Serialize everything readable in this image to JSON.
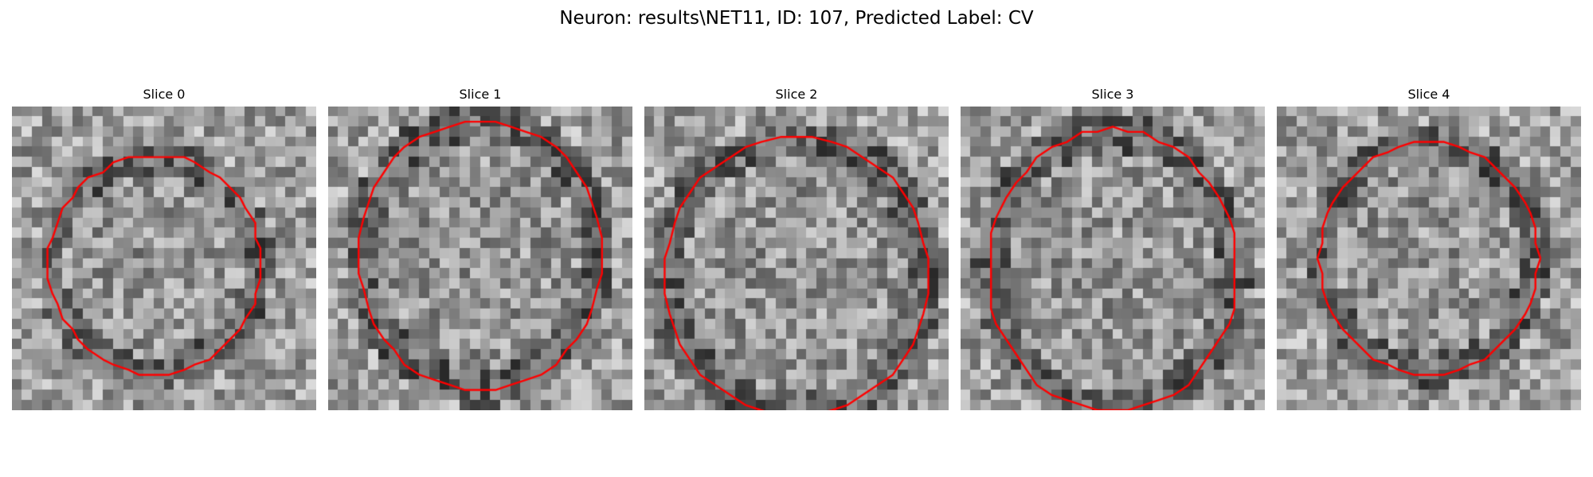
{
  "figure": {
    "title": "Neuron: results\\NET11, ID: 107, Predicted Label: CV",
    "overlay_color": "#ff0000"
  },
  "slices": [
    {
      "label": "Slice 0"
    },
    {
      "label": "Slice 1"
    },
    {
      "label": "Slice 2"
    },
    {
      "label": "Slice 3"
    },
    {
      "label": "Slice 4"
    }
  ]
}
